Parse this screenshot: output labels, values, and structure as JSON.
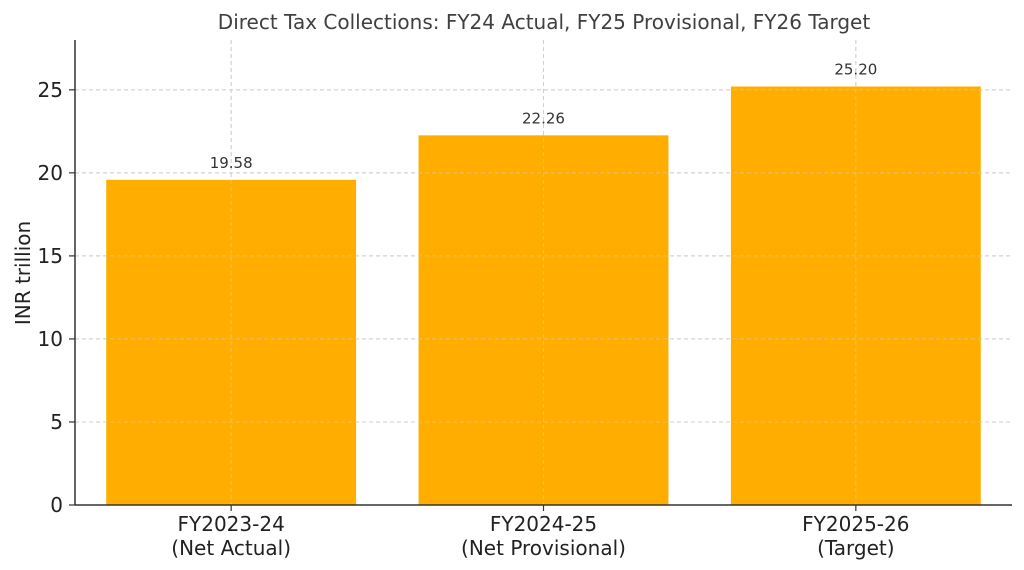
{
  "chart_data": {
    "type": "bar",
    "title": "Direct Tax Collections: FY24 Actual, FY25 Provisional, FY26 Target",
    "xlabel": "",
    "ylabel": "INR trillion",
    "categories": [
      [
        "FY2023-24",
        "(Net Actual)"
      ],
      [
        "FY2024-25",
        "(Net Provisional)"
      ],
      [
        "FY2025-26",
        "(Target)"
      ]
    ],
    "values": [
      19.58,
      22.26,
      25.2
    ],
    "data_labels": [
      "19.58",
      "22.26",
      "25.20"
    ],
    "ylim": [
      0,
      28
    ],
    "yticks": [
      0,
      5,
      10,
      15,
      20,
      25
    ],
    "grid": true,
    "bar_color": "#FFAE00"
  }
}
